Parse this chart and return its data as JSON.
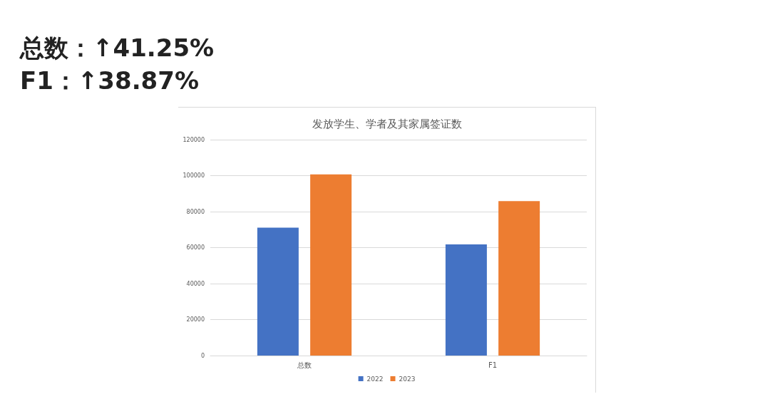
{
  "chart_data": {
    "type": "bar",
    "title": "发放学生、学者及其家属签证数",
    "annotations": [
      "总数：↑41.25%",
      "F1：↑38.87%"
    ],
    "categories": [
      "总数",
      "F1"
    ],
    "series": [
      {
        "name": "2022",
        "color": "#4472c4",
        "values": [
          71100,
          61800
        ]
      },
      {
        "name": "2023",
        "color": "#ed7d31",
        "values": [
          100700,
          85800
        ]
      }
    ],
    "ylim": [
      0,
      120000
    ],
    "yticks": [
      0,
      20000,
      40000,
      60000,
      80000,
      100000,
      120000
    ],
    "grid": "y",
    "legend": "bottom"
  }
}
